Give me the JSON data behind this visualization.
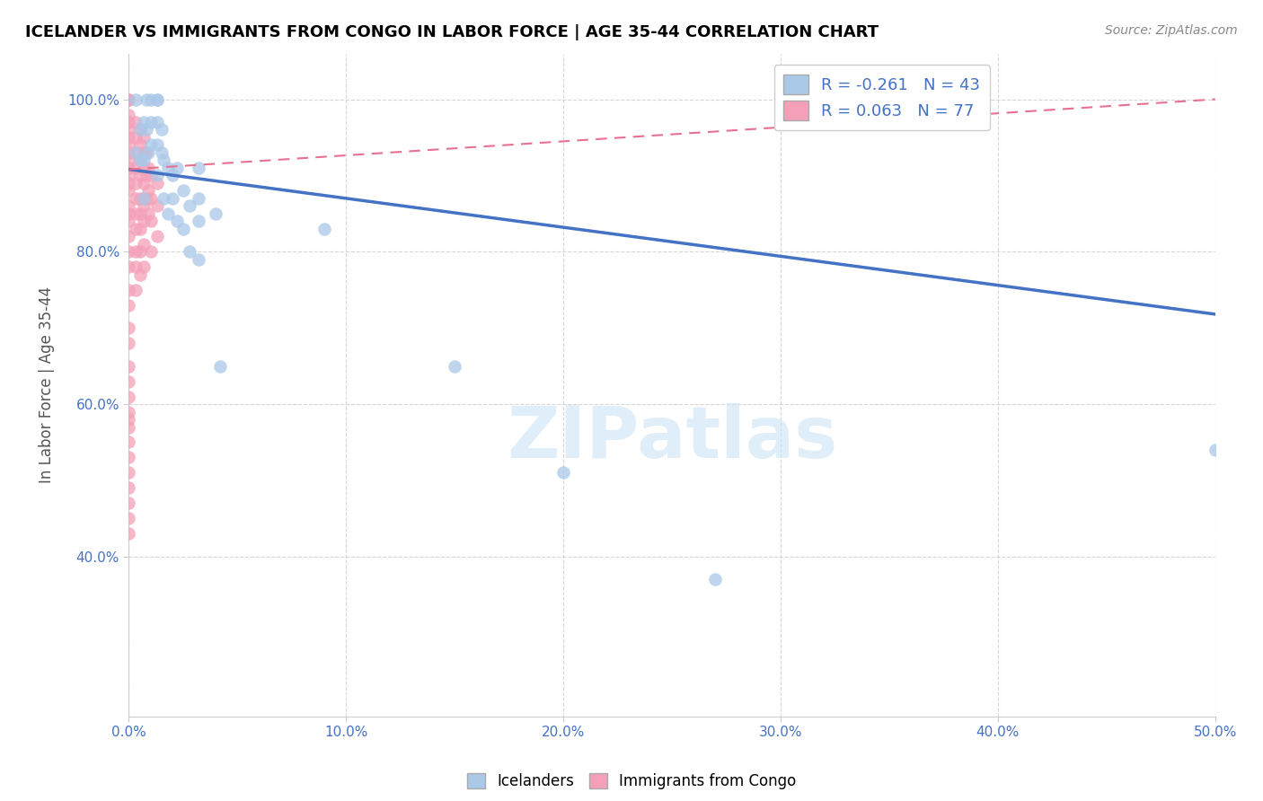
{
  "title": "ICELANDER VS IMMIGRANTS FROM CONGO IN LABOR FORCE | AGE 35-44 CORRELATION CHART",
  "source": "Source: ZipAtlas.com",
  "xlabel_blue": "Icelanders",
  "xlabel_pink": "Immigrants from Congo",
  "ylabel_label": "In Labor Force | Age 35-44",
  "xlim": [
    0.0,
    0.5
  ],
  "ylim": [
    0.19,
    1.06
  ],
  "xticks": [
    0.0,
    0.1,
    0.2,
    0.3,
    0.4,
    0.5
  ],
  "yticks": [
    0.4,
    0.6,
    0.8,
    1.0
  ],
  "ytick_labels": [
    "40.0%",
    "60.0%",
    "80.0%",
    "100.0%"
  ],
  "xtick_labels": [
    "0.0%",
    "10.0%",
    "20.0%",
    "30.0%",
    "40.0%",
    "50.0%"
  ],
  "blue_R": "-0.261",
  "blue_N": "43",
  "pink_R": "0.063",
  "pink_N": "77",
  "blue_color": "#aac8e8",
  "pink_color": "#f4a0b8",
  "blue_line_color": "#4472c4",
  "pink_line_color": "#e87090",
  "watermark": "ZIPatlas",
  "blue_line_x0": 0.0,
  "blue_line_y0": 0.908,
  "blue_line_x1": 0.5,
  "blue_line_y1": 0.718,
  "pink_line_x0": 0.0,
  "pink_line_y0": 0.908,
  "pink_line_x1": 0.5,
  "pink_line_y1": 1.0,
  "blue_scatter_x": [
    0.003,
    0.003,
    0.005,
    0.005,
    0.007,
    0.007,
    0.007,
    0.008,
    0.008,
    0.009,
    0.01,
    0.01,
    0.01,
    0.013,
    0.013,
    0.013,
    0.013,
    0.013,
    0.015,
    0.015,
    0.016,
    0.016,
    0.018,
    0.018,
    0.02,
    0.02,
    0.022,
    0.022,
    0.025,
    0.025,
    0.028,
    0.028,
    0.032,
    0.032,
    0.032,
    0.032,
    0.04,
    0.042,
    0.09,
    0.15,
    0.2,
    0.27,
    0.5
  ],
  "blue_scatter_y": [
    0.93,
    1.0,
    0.96,
    0.92,
    0.97,
    0.92,
    0.87,
    1.0,
    0.96,
    0.93,
    1.0,
    0.97,
    0.94,
    1.0,
    1.0,
    0.97,
    0.94,
    0.9,
    0.96,
    0.93,
    0.92,
    0.87,
    0.91,
    0.85,
    0.9,
    0.87,
    0.91,
    0.84,
    0.88,
    0.83,
    0.86,
    0.8,
    0.91,
    0.87,
    0.84,
    0.79,
    0.85,
    0.65,
    0.83,
    0.65,
    0.51,
    0.37,
    0.54
  ],
  "pink_scatter_x": [
    0.0,
    0.0,
    0.0,
    0.0,
    0.0,
    0.0,
    0.0,
    0.0,
    0.0,
    0.0,
    0.0,
    0.0,
    0.0,
    0.0,
    0.0,
    0.0,
    0.0,
    0.0,
    0.0,
    0.0,
    0.0,
    0.0,
    0.0,
    0.0,
    0.0,
    0.0,
    0.0,
    0.0,
    0.0,
    0.0,
    0.0,
    0.0,
    0.0,
    0.0,
    0.0,
    0.0,
    0.003,
    0.003,
    0.003,
    0.003,
    0.003,
    0.003,
    0.003,
    0.003,
    0.003,
    0.003,
    0.003,
    0.005,
    0.005,
    0.005,
    0.005,
    0.005,
    0.005,
    0.005,
    0.005,
    0.005,
    0.007,
    0.007,
    0.007,
    0.007,
    0.007,
    0.007,
    0.007,
    0.007,
    0.008,
    0.008,
    0.008,
    0.009,
    0.009,
    0.009,
    0.01,
    0.01,
    0.01,
    0.01,
    0.013,
    0.013,
    0.013
  ],
  "pink_scatter_y": [
    1.0,
    1.0,
    0.98,
    0.97,
    0.96,
    0.95,
    0.94,
    0.93,
    0.92,
    0.91,
    0.9,
    0.89,
    0.88,
    0.86,
    0.85,
    0.84,
    0.82,
    0.8,
    0.78,
    0.75,
    0.73,
    0.7,
    0.68,
    0.65,
    0.63,
    0.61,
    0.59,
    0.57,
    0.55,
    0.53,
    0.51,
    0.49,
    0.47,
    0.45,
    0.43,
    0.58,
    0.97,
    0.95,
    0.93,
    0.91,
    0.89,
    0.87,
    0.85,
    0.83,
    0.8,
    0.78,
    0.75,
    0.96,
    0.94,
    0.92,
    0.9,
    0.87,
    0.85,
    0.83,
    0.8,
    0.77,
    0.95,
    0.93,
    0.91,
    0.89,
    0.86,
    0.84,
    0.81,
    0.78,
    0.93,
    0.9,
    0.87,
    0.91,
    0.88,
    0.85,
    0.9,
    0.87,
    0.84,
    0.8,
    0.89,
    0.86,
    0.82
  ]
}
